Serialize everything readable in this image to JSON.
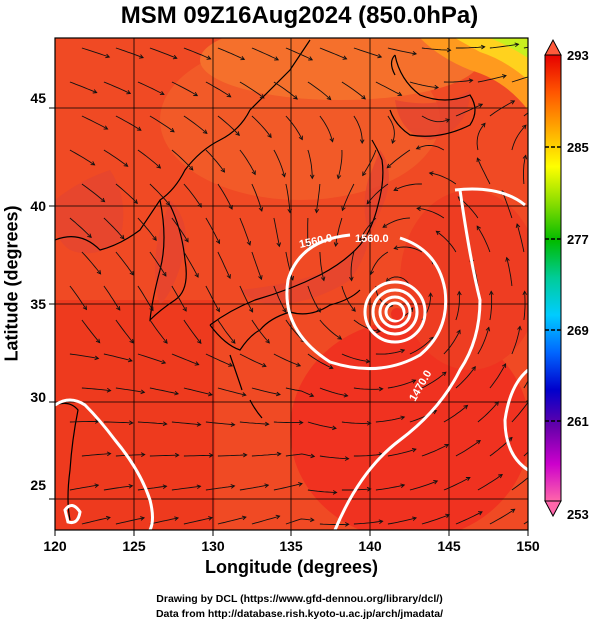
{
  "title": "MSM 09Z16Aug2024 (850.0hPa)",
  "x_axis": {
    "label": "Longitude (degrees)",
    "range": [
      120,
      150
    ],
    "ticks": [
      "120",
      "125",
      "130",
      "135",
      "140",
      "145",
      "150"
    ]
  },
  "y_axis": {
    "label": "Latitude  (degrees)",
    "range": [
      22.4,
      47.6
    ],
    "ticks": [
      "25",
      "30",
      "35",
      "40",
      "45"
    ]
  },
  "colorbar": {
    "min": 253,
    "max": 293,
    "labels": [
      "293",
      "285",
      "277",
      "269",
      "261",
      "253"
    ],
    "colors": [
      "#ff66aa",
      "#cc00cc",
      "#6600aa",
      "#0000cc",
      "#0066ff",
      "#00ccff",
      "#00cc99",
      "#00bb00",
      "#88dd00",
      "#ffff00",
      "#ffaa00",
      "#ff5500",
      "#e60000"
    ]
  },
  "contour_labels": [
    "1560.0",
    "1560.0",
    "1470.0"
  ],
  "storm_center": {
    "lon": 141.5,
    "lat": 34.5
  },
  "credits": {
    "line1": "Drawing by DCL (https://www.gfd-dennou.org/library/dcl/)",
    "line2": "Data from http://database.rish.kyoto-u.ac.jp/arch/jmadata/"
  }
}
